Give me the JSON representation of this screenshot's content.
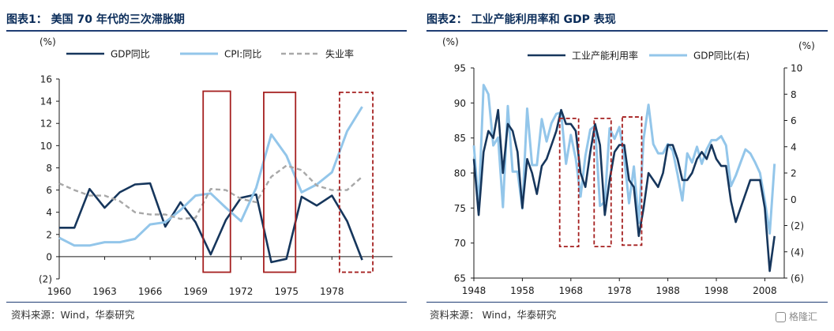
{
  "left": {
    "title": "图表1：  美国 70 年代的三次滞胀期",
    "source": "资料来源：Wind，华泰研究"
  },
  "right": {
    "title": "图表2：  工业产能利用率和 GDP 表现",
    "source": "资料来源：  Wind，华泰研究"
  },
  "watermark": "格隆汇",
  "colors": {
    "dark_navy": "#16365c",
    "light_blue": "#93c6ea",
    "gray_dash": "#a8a8a8",
    "box_red": "#a52020",
    "title_navy": "#0b2d5a"
  },
  "chart_data": [
    {
      "type": "line",
      "unit_label": "(%)",
      "x_ticks": [
        "1960",
        "1963",
        "1966",
        "1969",
        "1972",
        "1975",
        "1978"
      ],
      "y_ticks": [
        "(2)",
        "0",
        "2",
        "4",
        "6",
        "8",
        "10",
        "12",
        "14",
        "16"
      ],
      "ylim": [
        -2,
        16
      ],
      "xlim": [
        1960,
        1982
      ],
      "series": [
        {
          "name": "GDP同比",
          "style": "solid-dark",
          "x": [
            1960,
            1961,
            1962,
            1963,
            1964,
            1965,
            1966,
            1967,
            1968,
            1969,
            1970,
            1971,
            1972,
            1973,
            1974,
            1975,
            1976,
            1977,
            1978,
            1979,
            1980,
            1981
          ],
          "values": [
            2.6,
            2.6,
            6.1,
            4.4,
            5.8,
            6.5,
            6.6,
            2.7,
            4.9,
            3.1,
            0.2,
            3.3,
            5.3,
            5.6,
            -0.5,
            -0.2,
            5.4,
            4.6,
            5.5,
            3.2,
            -0.3,
            null
          ]
        },
        {
          "name": "CPI:同比",
          "style": "solid-light",
          "x": [
            1960,
            1961,
            1962,
            1963,
            1964,
            1965,
            1966,
            1967,
            1968,
            1969,
            1970,
            1971,
            1972,
            1973,
            1974,
            1975,
            1976,
            1977,
            1978,
            1979,
            1980,
            1981
          ],
          "values": [
            1.7,
            1.0,
            1.0,
            1.3,
            1.3,
            1.6,
            2.9,
            3.1,
            4.2,
            5.5,
            5.7,
            4.4,
            3.2,
            6.2,
            11.0,
            9.1,
            5.8,
            6.5,
            7.6,
            11.3,
            13.5,
            null
          ]
        },
        {
          "name": "失业率",
          "style": "dashed-gray",
          "x": [
            1960,
            1961,
            1962,
            1963,
            1964,
            1965,
            1966,
            1967,
            1968,
            1969,
            1970,
            1971,
            1972,
            1973,
            1974,
            1975,
            1976,
            1977,
            1978,
            1979,
            1980,
            1981
          ],
          "values": [
            6.6,
            6.0,
            5.5,
            5.5,
            5.0,
            4.0,
            3.8,
            3.8,
            3.4,
            3.5,
            6.1,
            6.0,
            5.2,
            4.9,
            7.2,
            8.2,
            7.8,
            6.4,
            6.0,
            6.0,
            7.2,
            null
          ]
        }
      ],
      "highlight_boxes": [
        {
          "x_from": 1969.5,
          "x_to": 1971.3,
          "y_from": -1.4,
          "y_to": 14.9,
          "style": "solid"
        },
        {
          "x_from": 1973.5,
          "x_to": 1975.6,
          "y_from": -1.4,
          "y_to": 14.8,
          "style": "solid"
        },
        {
          "x_from": 1978.5,
          "x_to": 1980.7,
          "y_from": -1.4,
          "y_to": 14.8,
          "style": "dashed"
        }
      ]
    },
    {
      "type": "line",
      "unit_label_left": "(%)",
      "unit_label_right": "(%)",
      "x_ticks": [
        "1948",
        "1958",
        "1968",
        "1978",
        "1988",
        "1998",
        "2008"
      ],
      "y_ticks_left": [
        "65",
        "70",
        "75",
        "80",
        "85",
        "90",
        "95"
      ],
      "y_ticks_right": [
        "(6)",
        "(4)",
        "(2)",
        "0",
        "2",
        "4",
        "6",
        "8",
        "10"
      ],
      "ylim_left": [
        65,
        95
      ],
      "ylim_right": [
        -6,
        10
      ],
      "xlim": [
        1948,
        2012
      ],
      "series": [
        {
          "name": "工业产能利用率",
          "style": "solid-dark",
          "axis": "left",
          "x": [
            1948,
            1949,
            1950,
            1951,
            1952,
            1953,
            1954,
            1955,
            1956,
            1957,
            1958,
            1959,
            1960,
            1961,
            1962,
            1963,
            1964,
            1965,
            1966,
            1967,
            1968,
            1969,
            1970,
            1971,
            1972,
            1973,
            1974,
            1975,
            1976,
            1977,
            1978,
            1979,
            1980,
            1981,
            1982,
            1983,
            1984,
            1985,
            1986,
            1987,
            1988,
            1989,
            1990,
            1991,
            1992,
            1993,
            1994,
            1995,
            1996,
            1997,
            1998,
            1999,
            2000,
            2001,
            2002,
            2003,
            2004,
            2005,
            2006,
            2007,
            2008,
            2009,
            2010
          ],
          "values": [
            82,
            74,
            83,
            86,
            85,
            89,
            80,
            87,
            86,
            83,
            75,
            82,
            80,
            77,
            81,
            82,
            84,
            86,
            89,
            87,
            87,
            86,
            80,
            78,
            83,
            87,
            84,
            74,
            79,
            83,
            84,
            84,
            79,
            78,
            71,
            75,
            80,
            79,
            78,
            80,
            84,
            84,
            82,
            79,
            79,
            80,
            82,
            83,
            82,
            84,
            82,
            81,
            81,
            76,
            73,
            75,
            77,
            79,
            79,
            79,
            75,
            66,
            71
          ]
        },
        {
          "name": "GDP同比(右)",
          "style": "solid-light",
          "axis": "right",
          "x": [
            1948,
            1949,
            1950,
            1951,
            1952,
            1953,
            1954,
            1955,
            1956,
            1957,
            1958,
            1959,
            1960,
            1961,
            1962,
            1963,
            1964,
            1965,
            1966,
            1967,
            1968,
            1969,
            1970,
            1971,
            1972,
            1973,
            1974,
            1975,
            1976,
            1977,
            1978,
            1979,
            1980,
            1981,
            1982,
            1983,
            1984,
            1985,
            1986,
            1987,
            1988,
            1989,
            1990,
            1991,
            1992,
            1993,
            1994,
            1995,
            1996,
            1997,
            1998,
            1999,
            2000,
            2001,
            2002,
            2003,
            2004,
            2005,
            2006,
            2007,
            2008,
            2009,
            2010
          ],
          "values": [
            4.1,
            -0.6,
            8.7,
            8.0,
            4.1,
            4.7,
            -0.6,
            7.1,
            2.1,
            2.1,
            -0.7,
            6.9,
            2.6,
            2.6,
            6.1,
            4.4,
            5.8,
            6.5,
            6.6,
            2.7,
            4.9,
            3.1,
            0.2,
            3.3,
            5.3,
            5.6,
            -0.5,
            -0.2,
            5.4,
            4.6,
            5.5,
            3.2,
            -0.3,
            2.5,
            -1.8,
            4.6,
            7.2,
            4.2,
            3.5,
            3.5,
            4.2,
            3.7,
            1.9,
            -0.1,
            3.5,
            2.8,
            4.0,
            2.7,
            3.8,
            4.5,
            4.5,
            4.8,
            4.1,
            1.0,
            1.8,
            2.8,
            3.8,
            3.5,
            2.8,
            2.0,
            -0.1,
            -2.6,
            2.7
          ]
        }
      ],
      "highlight_boxes": [
        {
          "x_from": 1965.7,
          "x_to": 1969.6,
          "y_from": 69.5,
          "y_to": 87.8,
          "style": "dashed"
        },
        {
          "x_from": 1972.8,
          "x_to": 1976.3,
          "y_from": 69.5,
          "y_to": 87.8,
          "style": "dashed"
        },
        {
          "x_from": 1978.6,
          "x_to": 1982.6,
          "y_from": 69.7,
          "y_to": 88.0,
          "style": "dashed"
        }
      ]
    }
  ]
}
